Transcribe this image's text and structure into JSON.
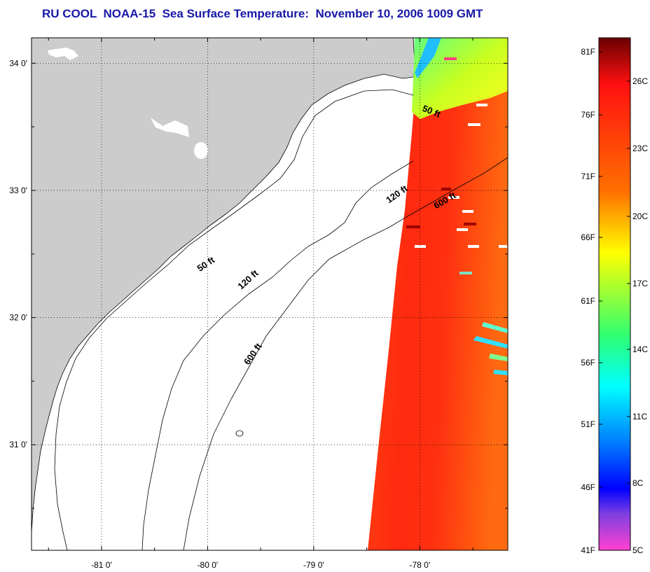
{
  "title": "RU COOL  NOAA-15  Sea Surface Temperature:  November 10, 2006 1009 GMT",
  "map": {
    "lon_range": [
      -81.66,
      -77.17
    ],
    "lat_range": [
      30.17,
      34.2
    ],
    "lon_ticks": [
      {
        "value": -81,
        "label": "-81 0'"
      },
      {
        "value": -80,
        "label": "-80 0'"
      },
      {
        "value": -79,
        "label": "-79 0'"
      },
      {
        "value": -78,
        "label": "-78 0'"
      }
    ],
    "lat_ticks": [
      {
        "value": 34,
        "label": "34 0'"
      },
      {
        "value": 33,
        "label": "33 0'"
      },
      {
        "value": 32,
        "label": "32 0'"
      },
      {
        "value": 31,
        "label": "31 0'"
      }
    ],
    "grid": true,
    "land_color": "#cccccc",
    "contours": [
      {
        "depth": "50 ft",
        "labels": [
          {
            "text": "50 ft",
            "lon": -77.9,
            "lat": 33.6,
            "angle": 22
          },
          {
            "text": "50 ft",
            "lon": -80.0,
            "lat": 32.4,
            "angle": -34
          }
        ]
      },
      {
        "depth": "120 ft",
        "labels": [
          {
            "text": "120 ft",
            "lon": -78.2,
            "lat": 32.95,
            "angle": -35
          },
          {
            "text": "120 ft",
            "lon": -79.6,
            "lat": 32.28,
            "angle": -42
          }
        ]
      },
      {
        "depth": "600 ft",
        "labels": [
          {
            "text": "600 ft",
            "lon": -77.75,
            "lat": 32.9,
            "angle": -30
          },
          {
            "text": "600 ft",
            "lon": -79.55,
            "lat": 31.7,
            "angle": -55
          }
        ]
      }
    ]
  },
  "colorbar": {
    "fahrenheit_labels": [
      "81F",
      "76F",
      "71F",
      "66F",
      "61F",
      "56F",
      "51F",
      "46F",
      "41F"
    ],
    "celsius_labels": [
      "26C",
      "23C",
      "20C",
      "17C",
      "14C",
      "11C",
      "8C",
      "5C"
    ],
    "colors": {
      "top": "#7a0000",
      "red": "#ff2010",
      "orange": "#ff8000",
      "yellow": "#ffff00",
      "green": "#40ff60",
      "cyan": "#00ffff",
      "blue": "#0060ff",
      "deep_blue": "#0000ff",
      "purple": "#8040e0",
      "magenta": "#ff40d0"
    }
  }
}
